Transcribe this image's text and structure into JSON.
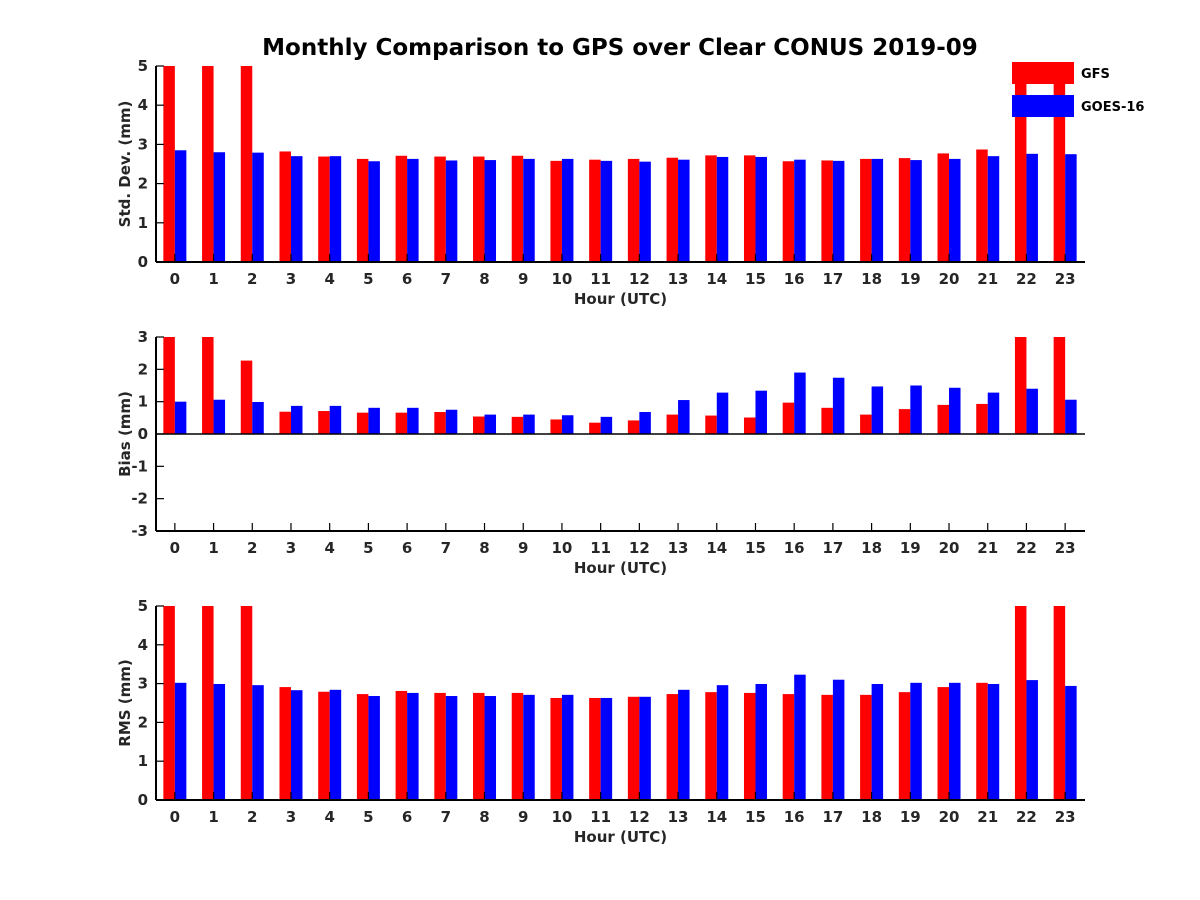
{
  "title": "Monthly Comparison to GPS over Clear CONUS 2019-09",
  "colors": {
    "GFS": "#ff0000",
    "GOES-16": "#0000ff"
  },
  "legend": {
    "placement": "top-right",
    "entries": [
      "GFS",
      "GOES-16"
    ]
  },
  "chart_data": [
    {
      "type": "bar",
      "xlabel": "Hour (UTC)",
      "ylabel": "Std. Dev. (mm)",
      "ylim": [
        0,
        5
      ],
      "yticks": [
        0,
        1,
        2,
        3,
        4,
        5
      ],
      "grid": false,
      "categories": [
        "0",
        "1",
        "2",
        "3",
        "4",
        "5",
        "6",
        "7",
        "8",
        "9",
        "10",
        "11",
        "12",
        "13",
        "14",
        "15",
        "16",
        "17",
        "18",
        "19",
        "20",
        "21",
        "22",
        "23"
      ],
      "series": [
        {
          "name": "GFS",
          "values": [
            5,
            5,
            5,
            2.82,
            2.69,
            2.63,
            2.71,
            2.69,
            2.69,
            2.71,
            2.58,
            2.61,
            2.63,
            2.66,
            2.72,
            2.72,
            2.57,
            2.59,
            2.63,
            2.65,
            2.77,
            2.87,
            5,
            5
          ]
        },
        {
          "name": "GOES-16",
          "values": [
            2.85,
            2.8,
            2.79,
            2.7,
            2.7,
            2.57,
            2.63,
            2.59,
            2.6,
            2.63,
            2.63,
            2.58,
            2.56,
            2.61,
            2.68,
            2.68,
            2.61,
            2.58,
            2.63,
            2.6,
            2.63,
            2.7,
            2.76,
            2.75
          ]
        }
      ]
    },
    {
      "type": "bar",
      "xlabel": "Hour (UTC)",
      "ylabel": "Bias (mm)",
      "ylim": [
        -3,
        3
      ],
      "yticks": [
        -3,
        -2,
        -1,
        0,
        1,
        2,
        3
      ],
      "grid": false,
      "categories": [
        "0",
        "1",
        "2",
        "3",
        "4",
        "5",
        "6",
        "7",
        "8",
        "9",
        "10",
        "11",
        "12",
        "13",
        "14",
        "15",
        "16",
        "17",
        "18",
        "19",
        "20",
        "21",
        "22",
        "23"
      ],
      "series": [
        {
          "name": "GFS",
          "values": [
            3,
            3,
            2.27,
            0.69,
            0.71,
            0.66,
            0.66,
            0.68,
            0.54,
            0.53,
            0.45,
            0.35,
            0.42,
            0.6,
            0.57,
            0.51,
            0.97,
            0.81,
            0.6,
            0.77,
            0.9,
            0.93,
            3,
            3
          ]
        },
        {
          "name": "GOES-16",
          "values": [
            1,
            1.06,
            0.99,
            0.87,
            0.87,
            0.81,
            0.81,
            0.75,
            0.6,
            0.6,
            0.58,
            0.53,
            0.68,
            1.05,
            1.28,
            1.34,
            1.9,
            1.74,
            1.47,
            1.5,
            1.43,
            1.28,
            1.4,
            1.06
          ]
        }
      ]
    },
    {
      "type": "bar",
      "xlabel": "Hour (UTC)",
      "ylabel": "RMS (mm)",
      "ylim": [
        0,
        5
      ],
      "yticks": [
        0,
        1,
        2,
        3,
        4,
        5
      ],
      "grid": false,
      "categories": [
        "0",
        "1",
        "2",
        "3",
        "4",
        "5",
        "6",
        "7",
        "8",
        "9",
        "10",
        "11",
        "12",
        "13",
        "14",
        "15",
        "16",
        "17",
        "18",
        "19",
        "20",
        "21",
        "22",
        "23"
      ],
      "series": [
        {
          "name": "GFS",
          "values": [
            5,
            5,
            5,
            2.91,
            2.79,
            2.73,
            2.81,
            2.76,
            2.76,
            2.76,
            2.63,
            2.63,
            2.66,
            2.73,
            2.78,
            2.76,
            2.73,
            2.71,
            2.71,
            2.78,
            2.91,
            3.02,
            5,
            5
          ]
        },
        {
          "name": "GOES-16",
          "values": [
            3.02,
            2.99,
            2.96,
            2.83,
            2.84,
            2.68,
            2.76,
            2.68,
            2.68,
            2.71,
            2.71,
            2.63,
            2.66,
            2.84,
            2.96,
            2.99,
            3.23,
            3.1,
            2.99,
            3.02,
            3.02,
            2.99,
            3.09,
            2.94
          ]
        }
      ]
    }
  ]
}
